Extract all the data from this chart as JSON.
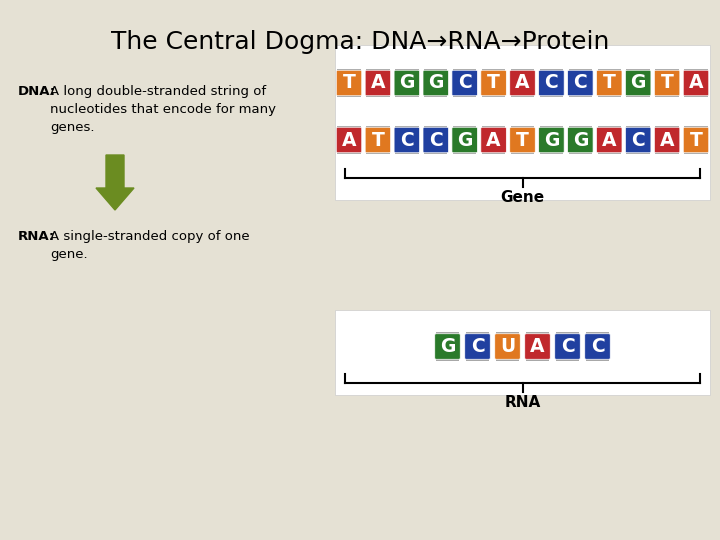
{
  "background_color": "#e5e1d4",
  "title": "The Central Dogma: DNA→RNA→Protein",
  "title_fontsize": 18,
  "title_color": "#000000",
  "gene_label": "Gene",
  "rna_strand_label": "RNA",
  "arrow_color": "#6b8c21",
  "label_fontsize": 9.5,
  "dna_row1": [
    "T",
    "A",
    "G",
    "G",
    "C",
    "T",
    "A",
    "C",
    "C",
    "T",
    "G",
    "T",
    "A"
  ],
  "dna_row2": [
    "A",
    "T",
    "C",
    "C",
    "G",
    "A",
    "T",
    "G",
    "G",
    "A",
    "C",
    "A",
    "T"
  ],
  "rna_row": [
    "G",
    "C",
    "U",
    "A",
    "C",
    "C"
  ],
  "nucleotide_colors": {
    "T": "#e07820",
    "A": "#c0282c",
    "G": "#2a7a2a",
    "C": "#2040a0",
    "U": "#e07820"
  }
}
